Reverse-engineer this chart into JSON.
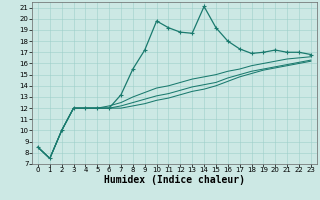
{
  "title": "",
  "xlabel": "Humidex (Indice chaleur)",
  "background_color": "#cce8e4",
  "line_color": "#1a7a6e",
  "xlim": [
    -0.5,
    23.5
  ],
  "ylim": [
    7,
    21.5
  ],
  "xticks": [
    0,
    1,
    2,
    3,
    4,
    5,
    6,
    7,
    8,
    9,
    10,
    11,
    12,
    13,
    14,
    15,
    16,
    17,
    18,
    19,
    20,
    21,
    22,
    23
  ],
  "yticks": [
    7,
    8,
    9,
    10,
    11,
    12,
    13,
    14,
    15,
    16,
    17,
    18,
    19,
    20,
    21
  ],
  "curve1_x": [
    0,
    1,
    2,
    3,
    4,
    5,
    6,
    7,
    8,
    9,
    10,
    11,
    12,
    13,
    14,
    15,
    16,
    17,
    18,
    19,
    20,
    21,
    22,
    23
  ],
  "curve1_y": [
    8.5,
    7.5,
    10.0,
    12.0,
    12.0,
    12.0,
    12.0,
    13.2,
    15.5,
    17.2,
    19.8,
    19.2,
    18.8,
    18.7,
    21.1,
    19.2,
    18.0,
    17.3,
    16.9,
    17.0,
    17.2,
    17.0,
    17.0,
    16.8
  ],
  "curve2_x": [
    0,
    1,
    2,
    3,
    4,
    5,
    6,
    7,
    8,
    9,
    10,
    11,
    12,
    13,
    14,
    15,
    16,
    17,
    18,
    19,
    20,
    21,
    22,
    23
  ],
  "curve2_y": [
    8.5,
    7.5,
    10.0,
    12.0,
    12.0,
    12.0,
    12.2,
    12.5,
    13.0,
    13.4,
    13.8,
    14.0,
    14.3,
    14.6,
    14.8,
    15.0,
    15.3,
    15.5,
    15.8,
    16.0,
    16.2,
    16.4,
    16.5,
    16.6
  ],
  "curve3_x": [
    0,
    1,
    2,
    3,
    4,
    5,
    6,
    7,
    8,
    9,
    10,
    11,
    12,
    13,
    14,
    15,
    16,
    17,
    18,
    19,
    20,
    21,
    22,
    23
  ],
  "curve3_y": [
    8.5,
    7.5,
    10.0,
    12.0,
    12.0,
    12.0,
    12.0,
    12.2,
    12.5,
    12.8,
    13.1,
    13.3,
    13.6,
    13.9,
    14.1,
    14.3,
    14.7,
    15.0,
    15.3,
    15.5,
    15.7,
    15.9,
    16.1,
    16.3
  ],
  "curve4_x": [
    0,
    1,
    2,
    3,
    4,
    5,
    6,
    7,
    8,
    9,
    10,
    11,
    12,
    13,
    14,
    15,
    16,
    17,
    18,
    19,
    20,
    21,
    22,
    23
  ],
  "curve4_y": [
    8.5,
    7.5,
    10.0,
    12.0,
    12.0,
    12.0,
    12.0,
    12.0,
    12.2,
    12.4,
    12.7,
    12.9,
    13.2,
    13.5,
    13.7,
    14.0,
    14.4,
    14.8,
    15.1,
    15.4,
    15.6,
    15.8,
    16.0,
    16.2
  ],
  "tick_fontsize": 5,
  "xlabel_fontsize": 7
}
